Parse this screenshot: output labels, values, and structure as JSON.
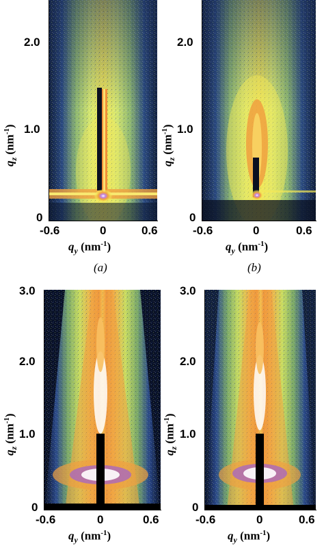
{
  "panels": [
    {
      "id": "a",
      "caption": "(a)",
      "y_ticks": [
        "2.0",
        "1.0",
        "0"
      ],
      "x_ticks": [
        "-0.6",
        "0",
        "0.6"
      ],
      "ylabel_q": "q",
      "ylabel_sub": "z",
      "ylabel_unit": "(nm",
      "ylabel_sup": "-1",
      "ylabel_end": ")",
      "xlabel_q": "q",
      "xlabel_sub": "y",
      "xlabel_unit": "(nm",
      "xlabel_sup": "-1",
      "xlabel_end": ")"
    },
    {
      "id": "b",
      "caption": "(b)",
      "y_ticks": [
        "2.0",
        "1.0",
        "0"
      ],
      "x_ticks": [
        "-0.6",
        "0",
        "0.6"
      ],
      "ylabel_q": "q",
      "ylabel_sub": "z",
      "ylabel_unit": "(nm",
      "ylabel_sup": "-1",
      "ylabel_end": ")",
      "xlabel_q": "q",
      "xlabel_sub": "y",
      "xlabel_unit": "(nm",
      "xlabel_sup": "-1",
      "xlabel_end": ")"
    },
    {
      "id": "c",
      "caption": "",
      "y_ticks": [
        "3.0",
        "2.0",
        "1.0",
        "0"
      ],
      "x_ticks": [
        "-0.6",
        "0",
        "0.6"
      ],
      "ylabel_q": "q",
      "ylabel_sub": "z",
      "ylabel_unit": "(nm",
      "ylabel_sup": "-1",
      "ylabel_end": ")",
      "xlabel_q": "q",
      "xlabel_sub": "y",
      "xlabel_unit": "(nm",
      "xlabel_sup": "-1",
      "xlabel_end": ")"
    },
    {
      "id": "d",
      "caption": "",
      "y_ticks": [
        "3.0",
        "2.0",
        "1.0",
        "0"
      ],
      "x_ticks": [
        "-0.6",
        "0",
        "0.6"
      ],
      "ylabel_q": "q",
      "ylabel_sub": "z",
      "ylabel_unit": "(nm",
      "ylabel_sup": "-1",
      "ylabel_end": ")",
      "xlabel_q": "q",
      "xlabel_sub": "y",
      "xlabel_unit": "(nm",
      "xlabel_sup": "-1",
      "xlabel_end": ")"
    }
  ],
  "colors": {
    "background": "#0d1730",
    "noise_blue": "#3a5a9a",
    "green": "#b8d860",
    "yellow": "#f4e858",
    "orange": "#f0a040",
    "purple": "#9a5ac8",
    "white": "#ffffff",
    "beamstop": "#000000"
  }
}
